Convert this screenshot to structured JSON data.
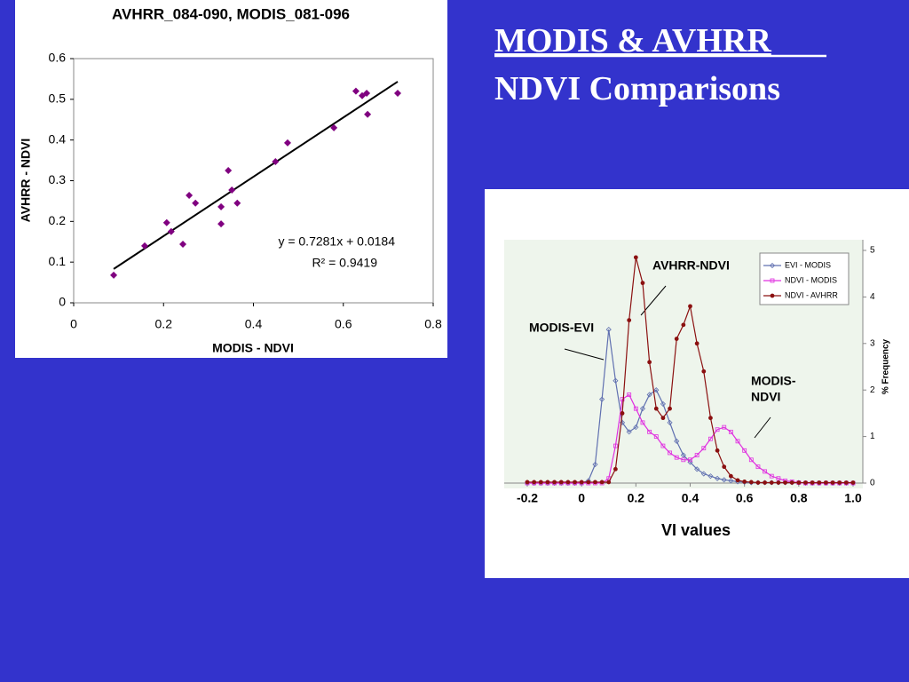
{
  "header": {
    "title_line1": "MODIS & AVHRR",
    "title_line2": "NDVI Comparisons"
  },
  "chart_data": [
    {
      "type": "scatter",
      "title": "AVHRR_084-090, MODIS_081-096",
      "x_label": "MODIS - NDVI",
      "y_label": "AVHRR - NDVI",
      "xlim": [
        0,
        0.8
      ],
      "xticks": [
        0,
        0.2,
        0.4,
        0.6,
        0.8
      ],
      "ylim": [
        0,
        0.6
      ],
      "yticks": [
        0,
        0.1,
        0.2,
        0.3,
        0.4,
        0.5,
        0.6
      ],
      "color": "#800080",
      "x": [
        0.158,
        0.089,
        0.207,
        0.217,
        0.243,
        0.257,
        0.271,
        0.328,
        0.328,
        0.344,
        0.352,
        0.364,
        0.449,
        0.476,
        0.579,
        0.628,
        0.642,
        0.652,
        0.654,
        0.721
      ],
      "values": [
        0.14,
        0.068,
        0.197,
        0.175,
        0.144,
        0.264,
        0.245,
        0.236,
        0.194,
        0.325,
        0.277,
        0.245,
        0.347,
        0.393,
        0.43,
        0.52,
        0.509,
        0.515,
        0.463,
        0.515
      ],
      "trendline": {
        "slope": 0.7281,
        "intercept": 0.0184,
        "label": "y = 0.7281x + 0.0184"
      },
      "r_squared_label": "R² = 0.9419"
    },
    {
      "type": "line",
      "x_label": "VI values",
      "y2_label": "% Frequency",
      "xlim": [
        -0.2,
        1.0
      ],
      "xticks": [
        -0.2,
        0,
        0.2,
        0.4,
        0.6,
        0.8,
        {
          "value": 1,
          "label": "1.0"
        }
      ],
      "y2lim": [
        0,
        5
      ],
      "y2ticks": [
        0,
        1,
        2,
        3,
        4,
        5
      ],
      "legend": "upper right",
      "annotations": [
        "AVHRR-NDVI",
        "MODIS-EVI",
        "MODIS-",
        "NDVI"
      ],
      "x": [
        -0.2,
        -0.175,
        -0.15,
        -0.125,
        -0.1,
        -0.075,
        -0.05,
        -0.025,
        0,
        0.025,
        0.05,
        0.075,
        0.1,
        0.125,
        0.15,
        0.175,
        0.2,
        0.225,
        0.25,
        0.275,
        0.3,
        0.325,
        0.35,
        0.375,
        0.4,
        0.425,
        0.45,
        0.475,
        0.5,
        0.525,
        0.55,
        0.575,
        0.6,
        0.625,
        0.65,
        0.675,
        0.7,
        0.725,
        0.75,
        0.775,
        0.8,
        0.825,
        0.85,
        0.875,
        0.9,
        0.925,
        0.95,
        0.975,
        1.0
      ],
      "series": [
        {
          "name": "EVI - MODIS",
          "color": "#6070b0",
          "marker": "diamond",
          "axis": "y2",
          "values": [
            0,
            0,
            0,
            0,
            0,
            0,
            0,
            0,
            0,
            0.05,
            0.4,
            1.8,
            3.3,
            2.2,
            1.3,
            1.1,
            1.2,
            1.6,
            1.9,
            2.0,
            1.7,
            1.3,
            0.9,
            0.6,
            0.45,
            0.3,
            0.2,
            0.15,
            0.1,
            0.07,
            0.05,
            0.03,
            0.02,
            0.01,
            0.01,
            0.01,
            0.01,
            0.01,
            0.01,
            0.01,
            0.01,
            0,
            0,
            0,
            0,
            0,
            0,
            0,
            0
          ]
        },
        {
          "name": "NDVI - MODIS",
          "color": "#e030e0",
          "marker": "square",
          "axis": "y2",
          "values": [
            0,
            0,
            0,
            0,
            0,
            0,
            0,
            0,
            0,
            0,
            0,
            0,
            0.1,
            0.8,
            1.8,
            1.9,
            1.6,
            1.3,
            1.1,
            1.0,
            0.8,
            0.65,
            0.55,
            0.5,
            0.5,
            0.6,
            0.75,
            0.95,
            1.15,
            1.2,
            1.1,
            0.9,
            0.7,
            0.5,
            0.35,
            0.25,
            0.15,
            0.1,
            0.05,
            0.03,
            0.01,
            0,
            0,
            0,
            0,
            0,
            0,
            0,
            0
          ]
        },
        {
          "name": "NDVI - AVHRR",
          "color": "#8b1010",
          "marker": "circle",
          "axis": "y2",
          "values": [
            0.02,
            0.02,
            0.02,
            0.02,
            0.02,
            0.02,
            0.02,
            0.02,
            0.02,
            0.02,
            0.02,
            0.02,
            0.02,
            0.3,
            1.5,
            3.5,
            4.85,
            4.3,
            2.6,
            1.6,
            1.4,
            1.6,
            3.1,
            3.4,
            3.8,
            3.0,
            2.4,
            1.4,
            0.7,
            0.35,
            0.15,
            0.06,
            0.03,
            0.02,
            0.01,
            0.01,
            0.01,
            0.01,
            0.01,
            0.01,
            0.01,
            0.01,
            0.01,
            0.01,
            0.01,
            0.01,
            0.01,
            0.01,
            0.01
          ]
        }
      ]
    }
  ]
}
